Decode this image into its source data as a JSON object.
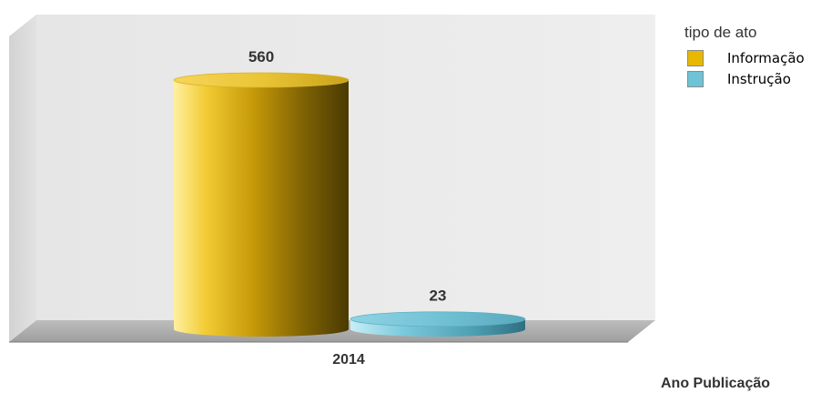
{
  "chart_data": {
    "type": "bar",
    "style": "3d-cylinder",
    "categories": [
      "2014"
    ],
    "series": [
      {
        "name": "Informação",
        "values": [
          560
        ],
        "color": "#e8b800"
      },
      {
        "name": "Instrução",
        "values": [
          23
        ],
        "color": "#6ec3d6"
      }
    ],
    "xlabel": "Ano Publicação",
    "ylabel": "",
    "ylim": [
      0,
      560
    ],
    "grid": false,
    "legend": {
      "title": "tipo de ato",
      "position": "top-right"
    }
  }
}
